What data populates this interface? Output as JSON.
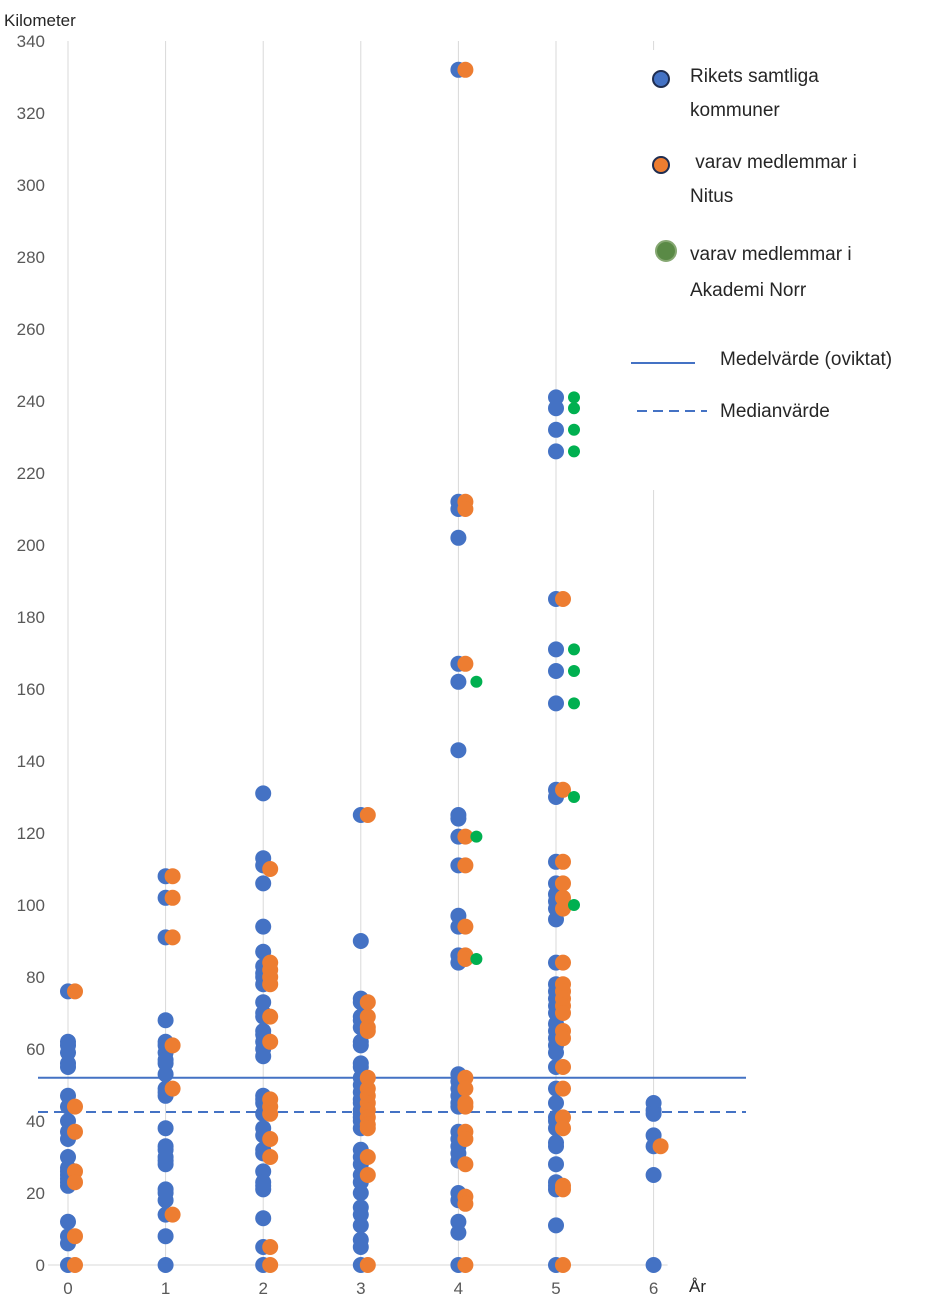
{
  "chart_data": {
    "type": "scatter",
    "xlabel": "År",
    "ylabel": "Kilometer",
    "xlim": [
      0,
      6
    ],
    "ylim": [
      0,
      340
    ],
    "x_ticks": [
      "0",
      "1",
      "2",
      "3",
      "4",
      "5",
      "6"
    ],
    "y_ticks": [
      "0",
      "20",
      "40",
      "60",
      "80",
      "100",
      "120",
      "140",
      "160",
      "180",
      "200",
      "220",
      "240",
      "260",
      "280",
      "300",
      "320",
      "340"
    ],
    "grid": "vertical",
    "legend_position": "top-right",
    "colors": {
      "all": "#4472c4",
      "nitus": "#ed7d31",
      "akademi": "#00b050",
      "mean": "#4472c4",
      "median": "#4472c4"
    },
    "legend": {
      "all": [
        "Rikets samtliga",
        "kommuner"
      ],
      "nitus": [
        " varav medlemmar i",
        "Nitus"
      ],
      "akademi": [
        "varav medlemmar i",
        "Akademi Norr"
      ],
      "mean": "Medelvärde (oviktat)",
      "median": "Medianvärde"
    },
    "mean": 52,
    "median": 42.5,
    "series": [
      {
        "key": "all",
        "points": [
          [
            0,
            76
          ],
          [
            0,
            62
          ],
          [
            0,
            61
          ],
          [
            0,
            59
          ],
          [
            0,
            56
          ],
          [
            0,
            55
          ],
          [
            0,
            47
          ],
          [
            0,
            44
          ],
          [
            0,
            40
          ],
          [
            0,
            37
          ],
          [
            0,
            35
          ],
          [
            0,
            30
          ],
          [
            0,
            27
          ],
          [
            0,
            26
          ],
          [
            0,
            25
          ],
          [
            0,
            24
          ],
          [
            0,
            23
          ],
          [
            0,
            22
          ],
          [
            0,
            12
          ],
          [
            0,
            8
          ],
          [
            0,
            6
          ],
          [
            0,
            0
          ],
          [
            1,
            108
          ],
          [
            1,
            102
          ],
          [
            1,
            91
          ],
          [
            1,
            68
          ],
          [
            1,
            62
          ],
          [
            1,
            61
          ],
          [
            1,
            59
          ],
          [
            1,
            57
          ],
          [
            1,
            56
          ],
          [
            1,
            53
          ],
          [
            1,
            49
          ],
          [
            1,
            48
          ],
          [
            1,
            47
          ],
          [
            1,
            38
          ],
          [
            1,
            33
          ],
          [
            1,
            32
          ],
          [
            1,
            30
          ],
          [
            1,
            29
          ],
          [
            1,
            28
          ],
          [
            1,
            21
          ],
          [
            1,
            20
          ],
          [
            1,
            18
          ],
          [
            1,
            14
          ],
          [
            1,
            8
          ],
          [
            1,
            0
          ],
          [
            2,
            131
          ],
          [
            2,
            113
          ],
          [
            2,
            111
          ],
          [
            2,
            106
          ],
          [
            2,
            94
          ],
          [
            2,
            87
          ],
          [
            2,
            83
          ],
          [
            2,
            81
          ],
          [
            2,
            80
          ],
          [
            2,
            78
          ],
          [
            2,
            73
          ],
          [
            2,
            70
          ],
          [
            2,
            69
          ],
          [
            2,
            65
          ],
          [
            2,
            64
          ],
          [
            2,
            62
          ],
          [
            2,
            60
          ],
          [
            2,
            58
          ],
          [
            2,
            47
          ],
          [
            2,
            46
          ],
          [
            2,
            45
          ],
          [
            2,
            42
          ],
          [
            2,
            38
          ],
          [
            2,
            36
          ],
          [
            2,
            32
          ],
          [
            2,
            31
          ],
          [
            2,
            26
          ],
          [
            2,
            23
          ],
          [
            2,
            22
          ],
          [
            2,
            21
          ],
          [
            2,
            13
          ],
          [
            2,
            5
          ],
          [
            2,
            0
          ],
          [
            3,
            125
          ],
          [
            3,
            90
          ],
          [
            3,
            74
          ],
          [
            3,
            73
          ],
          [
            3,
            69
          ],
          [
            3,
            68
          ],
          [
            3,
            66
          ],
          [
            3,
            62
          ],
          [
            3,
            61
          ],
          [
            3,
            56
          ],
          [
            3,
            55
          ],
          [
            3,
            52
          ],
          [
            3,
            50
          ],
          [
            3,
            48
          ],
          [
            3,
            46
          ],
          [
            3,
            45
          ],
          [
            3,
            43
          ],
          [
            3,
            42
          ],
          [
            3,
            41
          ],
          [
            3,
            40
          ],
          [
            3,
            38
          ],
          [
            3,
            32
          ],
          [
            3,
            30
          ],
          [
            3,
            28
          ],
          [
            3,
            25
          ],
          [
            3,
            23
          ],
          [
            3,
            20
          ],
          [
            3,
            16
          ],
          [
            3,
            14
          ],
          [
            3,
            11
          ],
          [
            3,
            7
          ],
          [
            3,
            5
          ],
          [
            3,
            0
          ],
          [
            4,
            332
          ],
          [
            4,
            212
          ],
          [
            4,
            210
          ],
          [
            4,
            202
          ],
          [
            4,
            167
          ],
          [
            4,
            162
          ],
          [
            4,
            143
          ],
          [
            4,
            125
          ],
          [
            4,
            124
          ],
          [
            4,
            119
          ],
          [
            4,
            111
          ],
          [
            4,
            97
          ],
          [
            4,
            94
          ],
          [
            4,
            86
          ],
          [
            4,
            84
          ],
          [
            4,
            53
          ],
          [
            4,
            51
          ],
          [
            4,
            49
          ],
          [
            4,
            47
          ],
          [
            4,
            45
          ],
          [
            4,
            44
          ],
          [
            4,
            37
          ],
          [
            4,
            35
          ],
          [
            4,
            33
          ],
          [
            4,
            31
          ],
          [
            4,
            29
          ],
          [
            4,
            20
          ],
          [
            4,
            18
          ],
          [
            4,
            12
          ],
          [
            4,
            9
          ],
          [
            4,
            0
          ],
          [
            5,
            241
          ],
          [
            5,
            238
          ],
          [
            5,
            232
          ],
          [
            5,
            226
          ],
          [
            5,
            185
          ],
          [
            5,
            171
          ],
          [
            5,
            165
          ],
          [
            5,
            156
          ],
          [
            5,
            132
          ],
          [
            5,
            130
          ],
          [
            5,
            112
          ],
          [
            5,
            106
          ],
          [
            5,
            103
          ],
          [
            5,
            101
          ],
          [
            5,
            99
          ],
          [
            5,
            96
          ],
          [
            5,
            84
          ],
          [
            5,
            78
          ],
          [
            5,
            76
          ],
          [
            5,
            74
          ],
          [
            5,
            72
          ],
          [
            5,
            70
          ],
          [
            5,
            67
          ],
          [
            5,
            65
          ],
          [
            5,
            63
          ],
          [
            5,
            61
          ],
          [
            5,
            59
          ],
          [
            5,
            55
          ],
          [
            5,
            49
          ],
          [
            5,
            45
          ],
          [
            5,
            41
          ],
          [
            5,
            40
          ],
          [
            5,
            38
          ],
          [
            5,
            34
          ],
          [
            5,
            33
          ],
          [
            5,
            28
          ],
          [
            5,
            23
          ],
          [
            5,
            22
          ],
          [
            5,
            21
          ],
          [
            5,
            11
          ],
          [
            5,
            0
          ],
          [
            6,
            45
          ],
          [
            6,
            43
          ],
          [
            6,
            42
          ],
          [
            6,
            36
          ],
          [
            6,
            33
          ],
          [
            6,
            25
          ],
          [
            6,
            0
          ]
        ]
      },
      {
        "key": "nitus",
        "points": [
          [
            0,
            76
          ],
          [
            0,
            44
          ],
          [
            0,
            37
          ],
          [
            0,
            26
          ],
          [
            0,
            23
          ],
          [
            0,
            8
          ],
          [
            0,
            0
          ],
          [
            1,
            108
          ],
          [
            1,
            102
          ],
          [
            1,
            91
          ],
          [
            1,
            61
          ],
          [
            1,
            49
          ],
          [
            1,
            14
          ],
          [
            2,
            110
          ],
          [
            2,
            84
          ],
          [
            2,
            82
          ],
          [
            2,
            80
          ],
          [
            2,
            78
          ],
          [
            2,
            69
          ],
          [
            2,
            62
          ],
          [
            2,
            46
          ],
          [
            2,
            44
          ],
          [
            2,
            42
          ],
          [
            2,
            35
          ],
          [
            2,
            30
          ],
          [
            2,
            5
          ],
          [
            2,
            0
          ],
          [
            3,
            125
          ],
          [
            3,
            73
          ],
          [
            3,
            69
          ],
          [
            3,
            66
          ],
          [
            3,
            65
          ],
          [
            3,
            52
          ],
          [
            3,
            49
          ],
          [
            3,
            47
          ],
          [
            3,
            45
          ],
          [
            3,
            43
          ],
          [
            3,
            41
          ],
          [
            3,
            39
          ],
          [
            3,
            38
          ],
          [
            3,
            30
          ],
          [
            3,
            25
          ],
          [
            3,
            0
          ],
          [
            4,
            332
          ],
          [
            4,
            212
          ],
          [
            4,
            210
          ],
          [
            4,
            167
          ],
          [
            4,
            119
          ],
          [
            4,
            111
          ],
          [
            4,
            94
          ],
          [
            4,
            86
          ],
          [
            4,
            85
          ],
          [
            4,
            52
          ],
          [
            4,
            49
          ],
          [
            4,
            45
          ],
          [
            4,
            44
          ],
          [
            4,
            37
          ],
          [
            4,
            35
          ],
          [
            4,
            28
          ],
          [
            4,
            19
          ],
          [
            4,
            17
          ],
          [
            4,
            0
          ],
          [
            5,
            185
          ],
          [
            5,
            132
          ],
          [
            5,
            112
          ],
          [
            5,
            106
          ],
          [
            5,
            102
          ],
          [
            5,
            99
          ],
          [
            5,
            84
          ],
          [
            5,
            78
          ],
          [
            5,
            76
          ],
          [
            5,
            74
          ],
          [
            5,
            72
          ],
          [
            5,
            70
          ],
          [
            5,
            65
          ],
          [
            5,
            63
          ],
          [
            5,
            55
          ],
          [
            5,
            49
          ],
          [
            5,
            41
          ],
          [
            5,
            38
          ],
          [
            5,
            22
          ],
          [
            5,
            21
          ],
          [
            5,
            0
          ],
          [
            6,
            33
          ]
        ]
      },
      {
        "key": "akademi",
        "points": [
          [
            4,
            162
          ],
          [
            4,
            119
          ],
          [
            4,
            85
          ],
          [
            5,
            241
          ],
          [
            5,
            238
          ],
          [
            5,
            232
          ],
          [
            5,
            226
          ],
          [
            5,
            171
          ],
          [
            5,
            165
          ],
          [
            5,
            156
          ],
          [
            5,
            130
          ],
          [
            5,
            100
          ]
        ]
      }
    ]
  }
}
